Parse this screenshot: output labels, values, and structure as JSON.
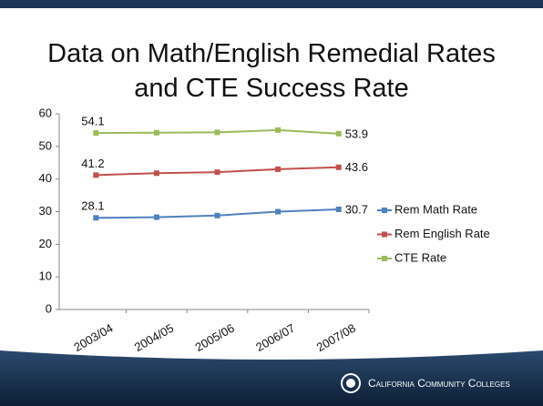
{
  "chart_data": {
    "type": "line",
    "title": "Data on Math/English Remedial Rates and CTE Success Rate",
    "categories": [
      "2003/04",
      "2004/05",
      "2005/06",
      "2006/07",
      "2007/08"
    ],
    "series": [
      {
        "name": "Rem Math Rate",
        "color": "#4f81bd",
        "values": [
          28.1,
          28.3,
          28.8,
          30.0,
          30.7
        ]
      },
      {
        "name": "Rem English Rate",
        "color": "#c0504d",
        "values": [
          41.2,
          41.8,
          42.1,
          43.0,
          43.6
        ]
      },
      {
        "name": "CTE Rate",
        "color": "#9bbb59",
        "values": [
          54.1,
          54.2,
          54.3,
          55.0,
          53.9
        ]
      }
    ],
    "ylim": [
      0,
      60
    ],
    "yticks": [
      0,
      10,
      20,
      30,
      40,
      50,
      60
    ],
    "grid": false,
    "legend": "right",
    "footer": "California Community Colleges"
  }
}
